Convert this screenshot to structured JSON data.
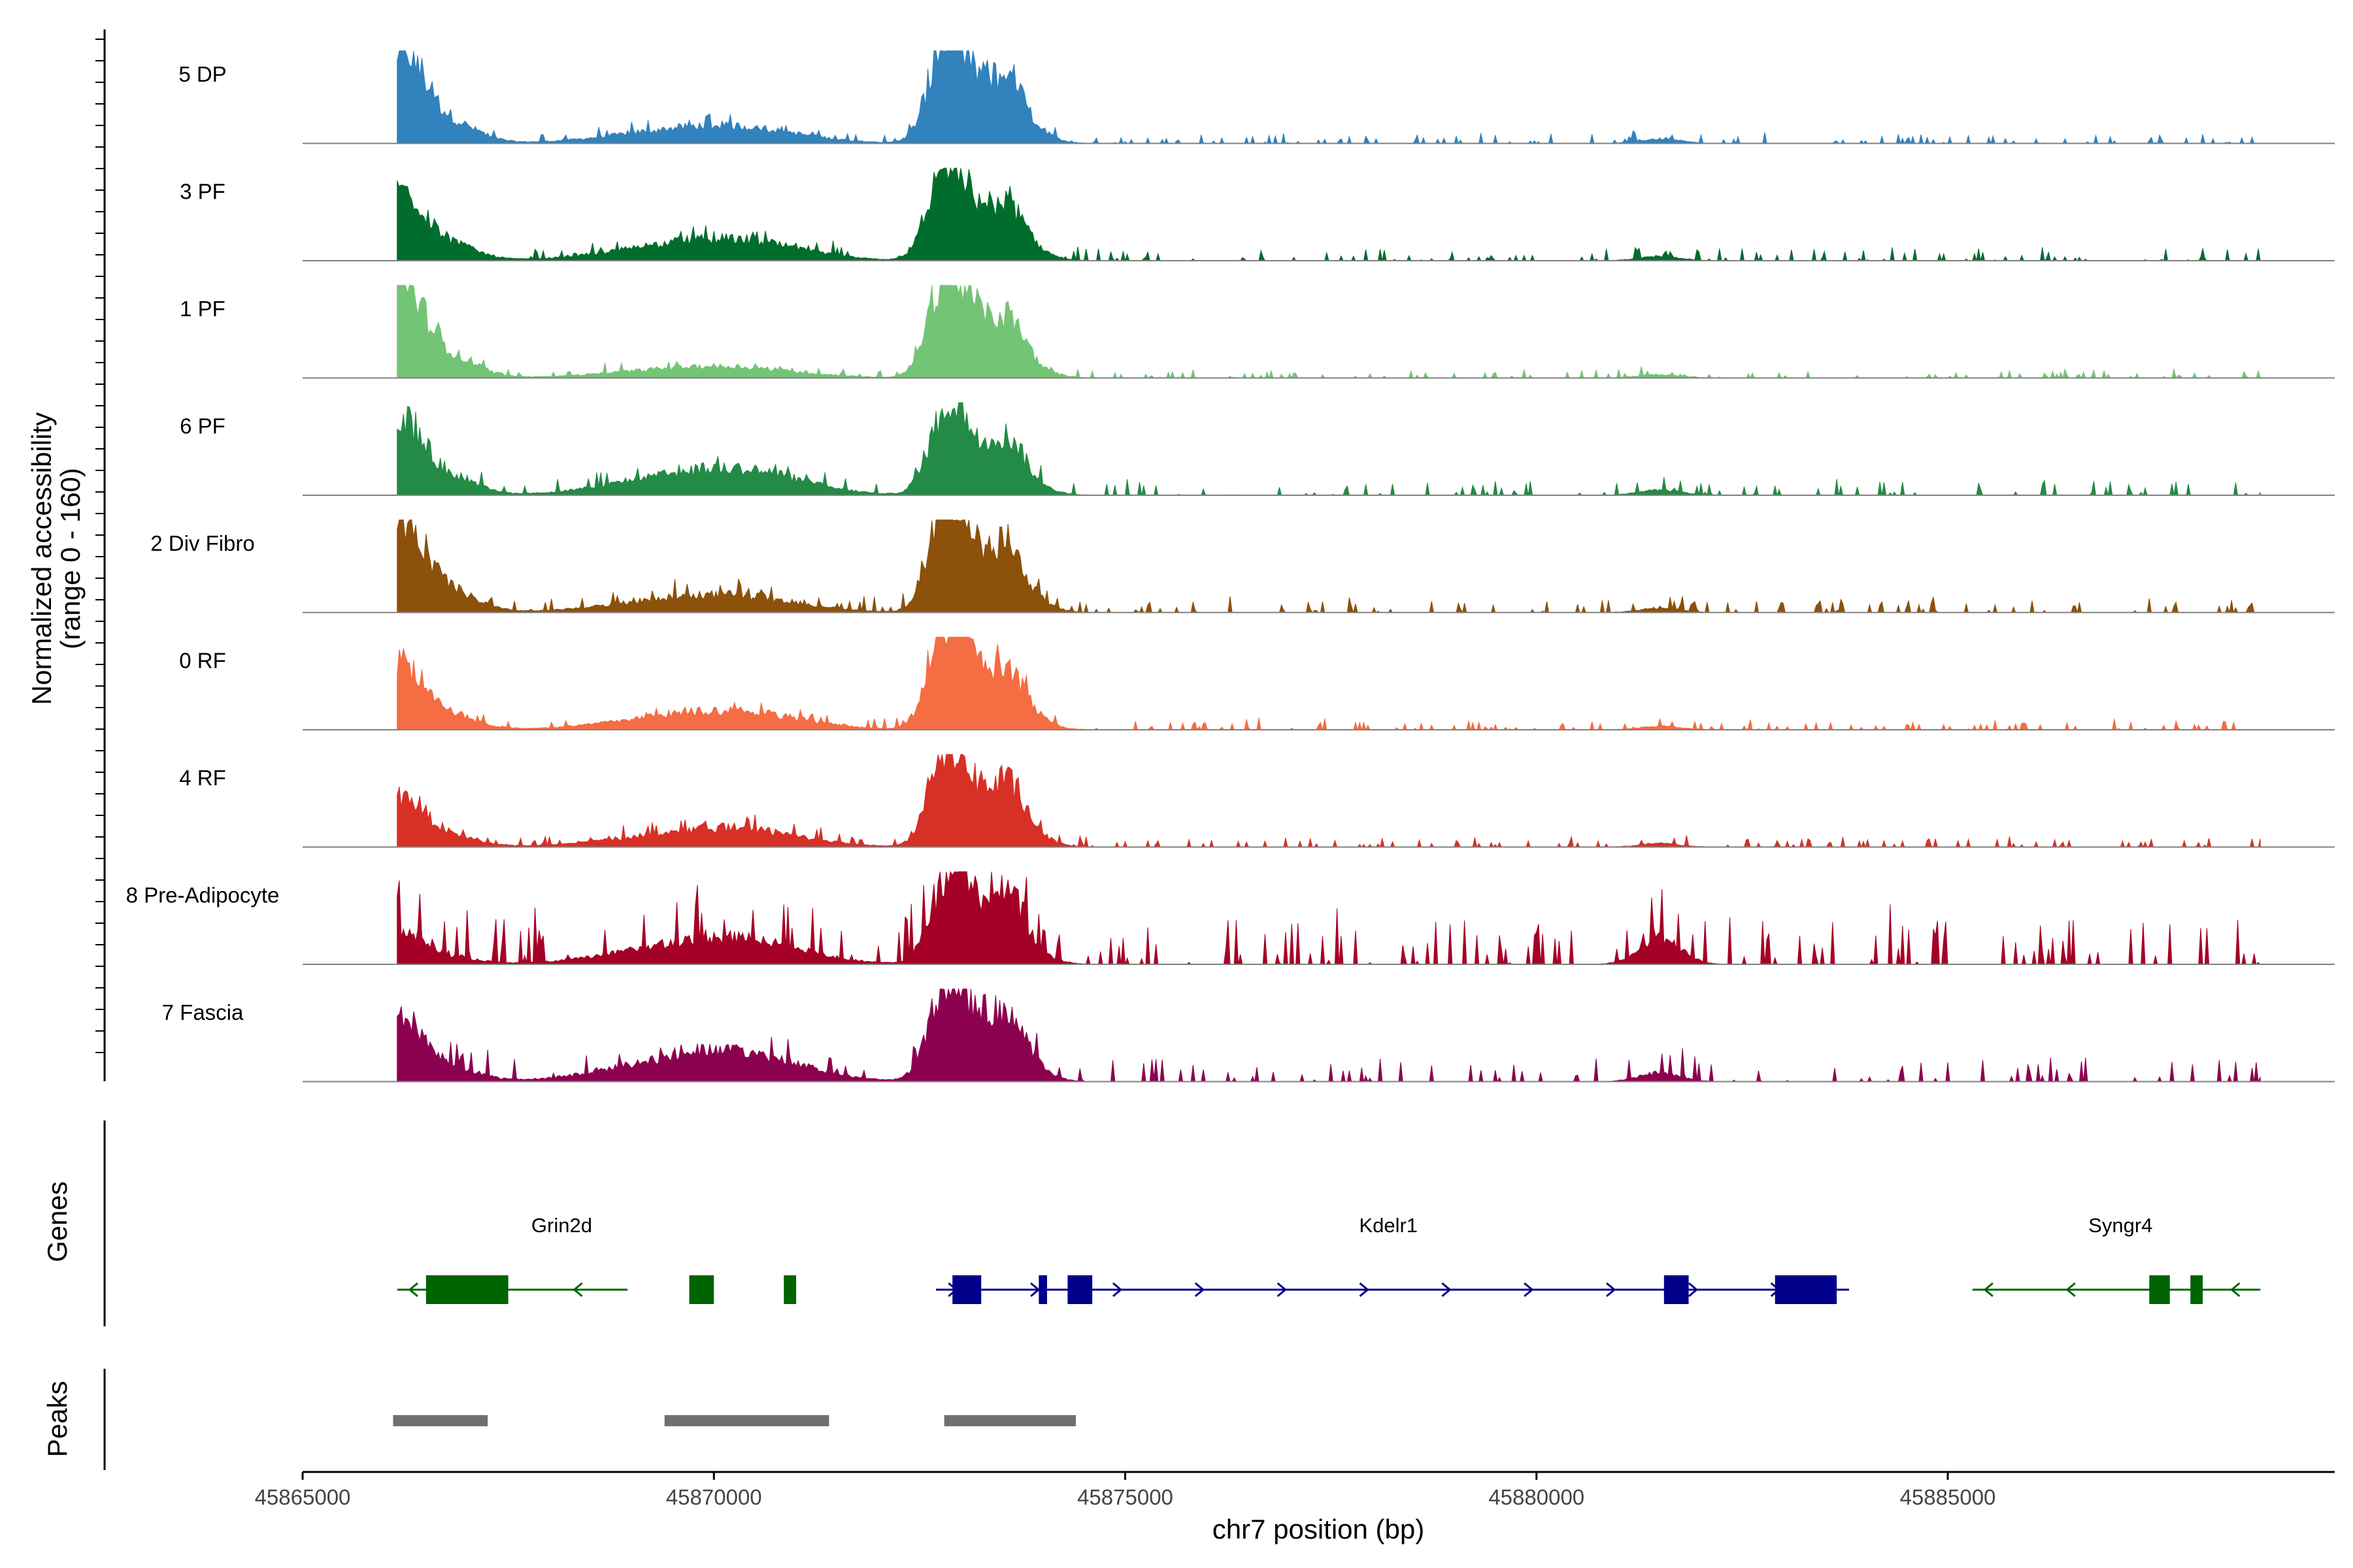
{
  "chart_data": {
    "type": "area",
    "title": "",
    "xlabel": "chr7 position (bp)",
    "ylabel": "Normalized accessibility",
    "ylabel_sub": "(range 0 - 160)",
    "yrange": [
      0,
      160
    ],
    "xlim": [
      45865000,
      45890000
    ],
    "x_ticks": [
      45865000,
      45870000,
      45875000,
      45880000,
      45885000
    ],
    "x_tick_labels": [
      "45865000",
      "45870000",
      "45875000",
      "45880000",
      "45885000"
    ],
    "series": [
      {
        "name": "5 DP",
        "color": "#3182bd",
        "peak_scale": [
          1.0,
          0.15,
          0.08,
          0.95,
          0.5,
          0.05
        ],
        "tail": 0.05
      },
      {
        "name": "3 PF",
        "color": "#006d2c",
        "peak_scale": [
          0.75,
          0.18,
          0.1,
          0.95,
          0.4,
          0.05
        ],
        "tail": 0.06
      },
      {
        "name": "1 PF",
        "color": "#74c476",
        "peak_scale": [
          1.0,
          0.1,
          0.05,
          1.0,
          0.45,
          0.04
        ],
        "tail": 0.04
      },
      {
        "name": "6 PF",
        "color": "#238b45",
        "peak_scale": [
          0.8,
          0.2,
          0.15,
          0.8,
          0.45,
          0.06
        ],
        "tail": 0.07
      },
      {
        "name": "2 Div Fibro",
        "color": "#8c510a",
        "peak_scale": [
          1.0,
          0.15,
          0.08,
          1.0,
          0.5,
          0.05
        ],
        "tail": 0.07
      },
      {
        "name": "0 RF",
        "color": "#f46d43",
        "peak_scale": [
          0.7,
          0.15,
          0.1,
          1.0,
          0.45,
          0.04
        ],
        "tail": 0.05
      },
      {
        "name": "4 RF",
        "color": "#d73027",
        "peak_scale": [
          0.55,
          0.15,
          0.1,
          0.85,
          0.5,
          0.04
        ],
        "tail": 0.05
      },
      {
        "name": "8 Pre-Adipocyte",
        "color": "#a50026",
        "peak_scale": [
          0.35,
          0.2,
          0.15,
          0.7,
          0.6,
          0.3
        ],
        "tail": 0.25
      },
      {
        "name": "7 Fascia",
        "color": "#8c0050",
        "peak_scale": [
          0.7,
          0.25,
          0.15,
          0.9,
          0.55,
          0.1
        ],
        "tail": 0.12
      }
    ],
    "peak_centers": [
      45866200,
      45869700,
      45870500,
      45872800,
      45873400,
      45881500
    ],
    "genes_label": "Genes",
    "genes": [
      {
        "name": "Grin2d",
        "strand": "-",
        "start": 45866150,
        "end": 45868950,
        "color": "#006400",
        "exons": [
          [
            45866500,
            45867500
          ],
          [
            45869700,
            45870000
          ],
          [
            45870850,
            45871000
          ]
        ],
        "label_pos": 45868150
      },
      {
        "name": "Kdelr1",
        "strand": "+",
        "start": 45872700,
        "end": 45883800,
        "color": "#00008b",
        "exons": [
          [
            45872900,
            45873250
          ],
          [
            45873950,
            45874050
          ],
          [
            45874300,
            45874600
          ],
          [
            45881550,
            45881850
          ],
          [
            45882900,
            45883650
          ]
        ],
        "label_pos": 45878200
      },
      {
        "name": "Syngr4",
        "strand": "-",
        "start": 45885300,
        "end": 45888800,
        "color": "#006400",
        "exons": [
          [
            45887450,
            45887700
          ],
          [
            45887950,
            45888100
          ]
        ],
        "label_pos": 45887100
      }
    ],
    "peaks_label": "Peaks",
    "peaks": [
      [
        45866100,
        45867250
      ],
      [
        45869400,
        45871400
      ],
      [
        45872800,
        45874400
      ]
    ],
    "peak_color": "#707070"
  }
}
